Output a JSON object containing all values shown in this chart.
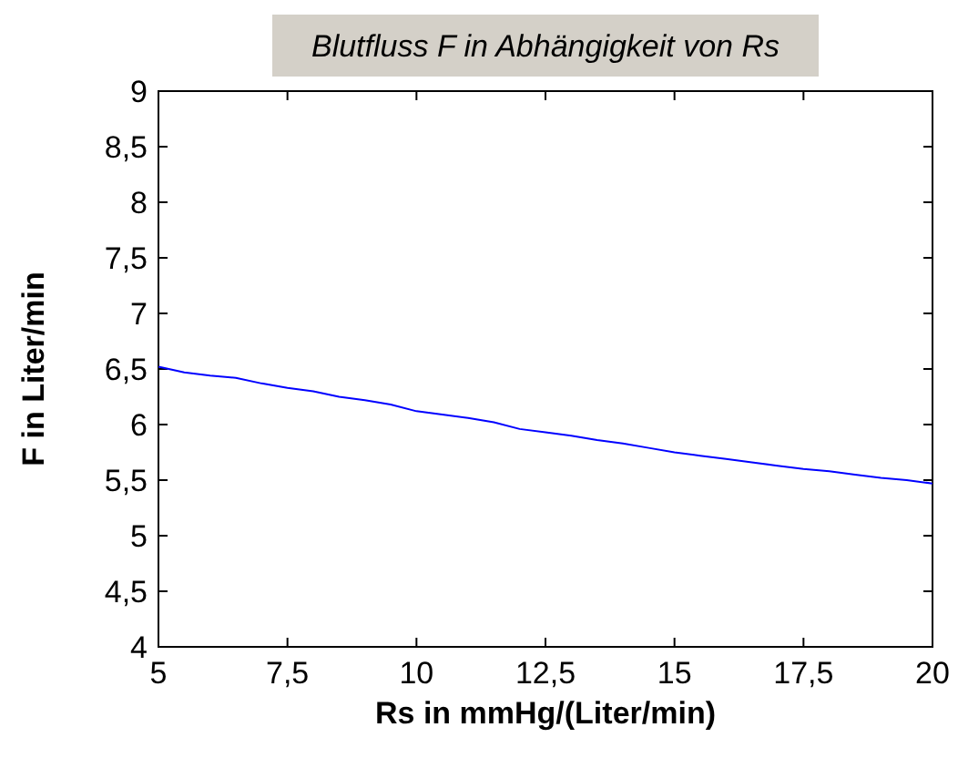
{
  "chart_data": {
    "type": "line",
    "title": "Blutfluss F in Abhängigkeit von Rs",
    "xlabel": "Rs in mmHg/(Liter/min)",
    "ylabel": "F in Liter/min",
    "x": [
      5,
      5.5,
      6,
      6.5,
      7,
      7.5,
      8,
      8.5,
      9,
      9.5,
      10,
      10.5,
      11,
      11.5,
      12,
      12.5,
      13,
      13.5,
      14,
      14.5,
      15,
      15.5,
      16,
      16.5,
      17,
      17.5,
      18,
      18.5,
      19,
      19.5,
      20
    ],
    "series": [
      {
        "color": "#0000ff",
        "values": [
          6.52,
          6.47,
          6.44,
          6.42,
          6.37,
          6.33,
          6.3,
          6.25,
          6.22,
          6.18,
          6.12,
          6.09,
          6.06,
          6.02,
          5.96,
          5.93,
          5.9,
          5.86,
          5.83,
          5.79,
          5.75,
          5.72,
          5.69,
          5.66,
          5.63,
          5.6,
          5.58,
          5.55,
          5.52,
          5.5,
          5.47
        ]
      }
    ],
    "xlim": [
      5,
      20
    ],
    "xticks": [
      5,
      {
        "value": 7.5,
        "label": "7,5"
      },
      10,
      {
        "value": 12.5,
        "label": "12,5"
      },
      15,
      {
        "value": 17.5,
        "label": "17,5"
      },
      20
    ],
    "ylim": [
      4,
      9
    ],
    "yticks": [
      4,
      {
        "value": 4.5,
        "label": "4,5"
      },
      5,
      {
        "value": 5.5,
        "label": "5,5"
      },
      6,
      {
        "value": 6.5,
        "label": "6,5"
      },
      7,
      {
        "value": 7.5,
        "label": "7,5"
      },
      8,
      {
        "value": 8.5,
        "label": "8,5"
      },
      9
    ],
    "grid": false,
    "marker": "none",
    "line_style": "solid"
  }
}
